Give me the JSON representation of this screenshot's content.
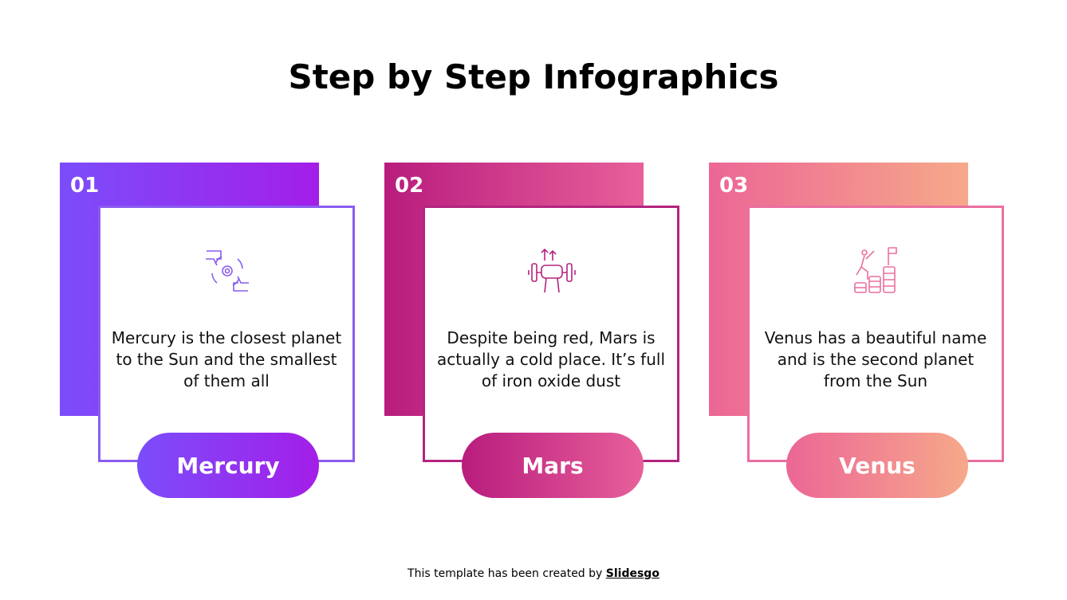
{
  "title": "Step by Step Infographics",
  "steps": [
    {
      "number": "01",
      "text": "Mercury is the closest planet to the Sun and the smallest of them all",
      "label": "Mercury",
      "icon": "hands-gear-icon",
      "color_start": "#7b4dfa",
      "color_end": "#a41ee8",
      "border": "#8a5cf0"
    },
    {
      "number": "02",
      "text": "Despite being red, Mars is actually a cold place. It’s full of iron oxide dust",
      "label": "Mars",
      "icon": "dumbbell-fist-icon",
      "color_start": "#b81c7e",
      "color_end": "#e8609a",
      "border": "#b3247f"
    },
    {
      "number": "03",
      "text": "Venus has a beautiful name and is the second planet from the Sun",
      "label": "Venus",
      "icon": "climb-goal-icon",
      "color_start": "#ec6696",
      "color_end": "#f6a98a",
      "border": "#ea6fa0"
    }
  ],
  "footer": {
    "text": "This template has been created by ",
    "brand": "Slidesgo"
  }
}
